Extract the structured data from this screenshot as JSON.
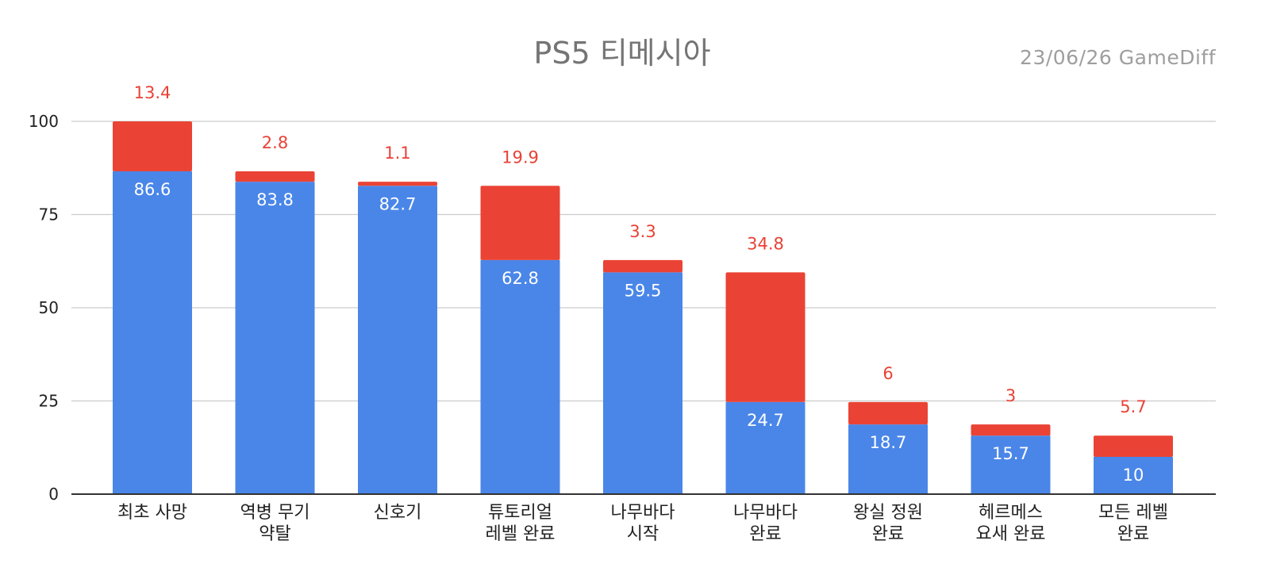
{
  "chart_data": {
    "type": "bar",
    "stacked": true,
    "title": "PS5 티메시아",
    "subtitle": "23/06/26  GameDiff",
    "categories": [
      [
        "최초 사망"
      ],
      [
        "역병 무기",
        "약탈"
      ],
      [
        "신호기"
      ],
      [
        "튜토리얼",
        "레벨 완료"
      ],
      [
        "나무바다",
        "시작"
      ],
      [
        "나무바다",
        "완료"
      ],
      [
        "왕실 정원",
        "완료"
      ],
      [
        "헤르메스",
        "요새 완료"
      ],
      [
        "모든 레벨",
        "완료"
      ]
    ],
    "series": [
      {
        "values": [
          86.6,
          83.8,
          82.7,
          62.8,
          59.5,
          24.7,
          18.7,
          15.7,
          10
        ],
        "color": "#4a86e8"
      },
      {
        "values": [
          13.4,
          2.8,
          1.1,
          19.9,
          3.3,
          34.8,
          6,
          3,
          5.7
        ],
        "color": "#ea4335"
      }
    ],
    "value_labels_bottom": [
      "86.6",
      "83.8",
      "82.7",
      "62.8",
      "59.5",
      "24.7",
      "18.7",
      "15.7",
      "10"
    ],
    "value_labels_top": [
      "13.4",
      "2.8",
      "1.1",
      "19.9",
      "3.3",
      "34.8",
      "6",
      "3",
      "5.7"
    ],
    "yticks": [
      0,
      25,
      50,
      75,
      100
    ],
    "ytick_labels": [
      "0",
      "25",
      "50",
      "75",
      "100"
    ],
    "ylim": [
      0,
      100
    ],
    "grid": true,
    "legend": "none",
    "xlabel": "",
    "ylabel": ""
  }
}
